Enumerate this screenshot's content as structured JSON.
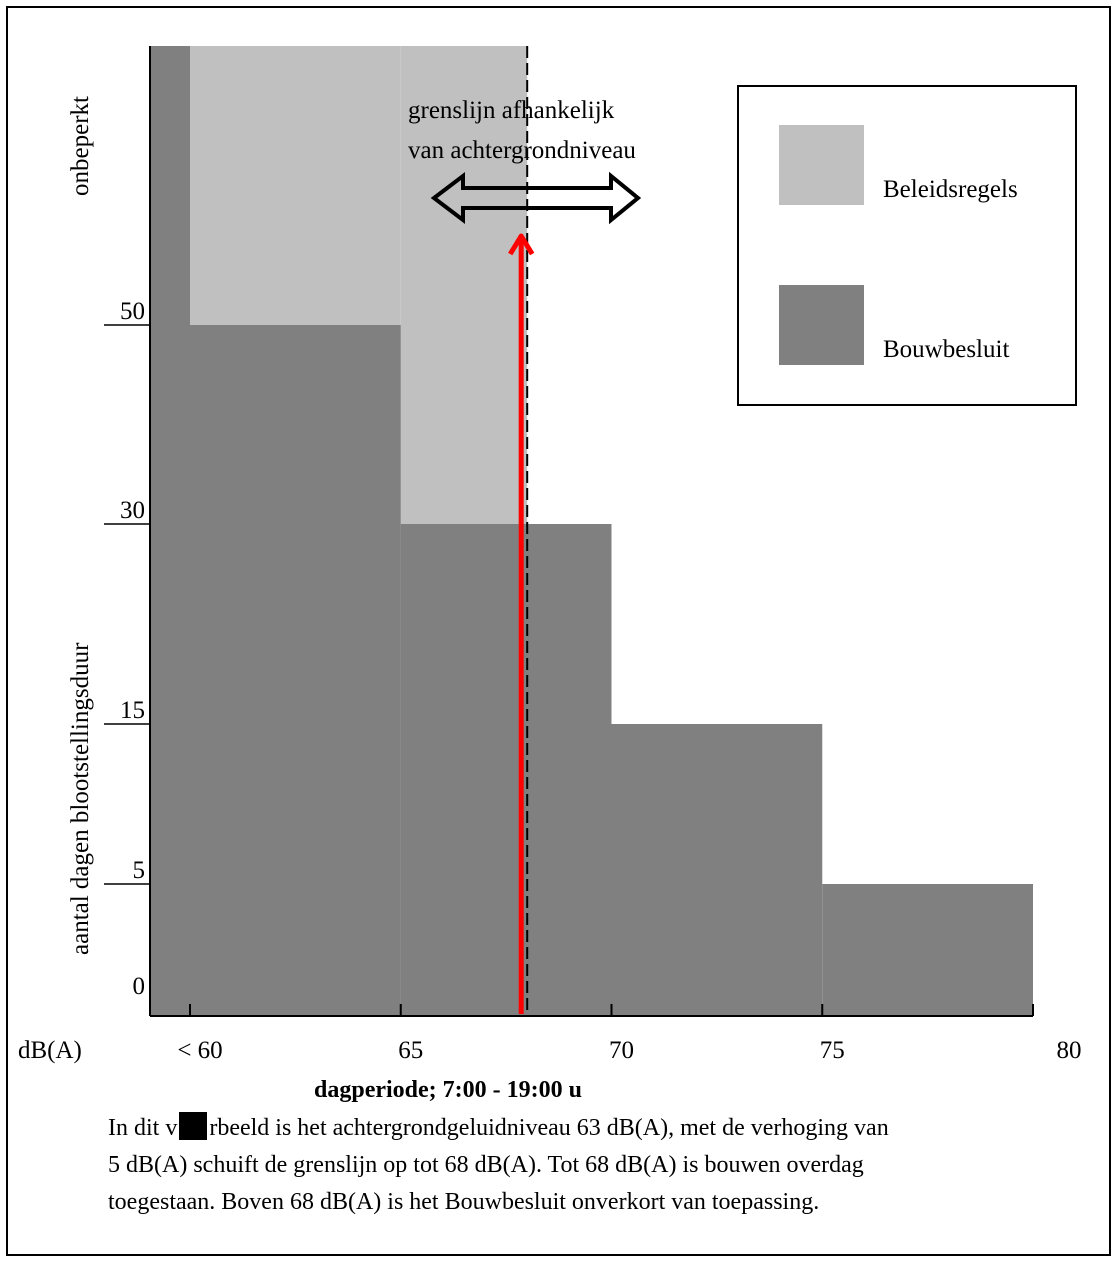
{
  "chart_data": {
    "type": "area",
    "title": "",
    "xlabel": "dagperiode; 7:00 - 19:00 u",
    "x_unit_label": "dB(A)",
    "ylabel": "aantal dagen blootstellingsduur",
    "x_ticks": [
      {
        "value": 60,
        "label": "< 60"
      },
      {
        "value": 65,
        "label": "65"
      },
      {
        "value": 70,
        "label": "70"
      },
      {
        "value": 75,
        "label": "75"
      },
      {
        "value": 80,
        "label": "80"
      }
    ],
    "y_ticks": [
      {
        "value": 0,
        "label": "0"
      },
      {
        "value": 5,
        "label": "5"
      },
      {
        "value": 15,
        "label": "15"
      },
      {
        "value": 30,
        "label": "30"
      },
      {
        "value": 50,
        "label": "50"
      }
    ],
    "y_top_label": "onbeperkt",
    "series": [
      {
        "name": "Bouwbesluit",
        "color": "#808080",
        "steps": [
          {
            "x_from": 59,
            "x_to": 60,
            "days": "onbeperkt"
          },
          {
            "x_from": 60,
            "x_to": 65,
            "days": 50
          },
          {
            "x_from": 65,
            "x_to": 70,
            "days": 30
          },
          {
            "x_from": 70,
            "x_to": 75,
            "days": 15
          },
          {
            "x_from": 75,
            "x_to": 80,
            "days": 5
          }
        ]
      },
      {
        "name": "Beleidsregels",
        "color": "#c0c0c0",
        "steps": [
          {
            "x_from": 60,
            "x_to": 65,
            "days": "onbeperkt"
          },
          {
            "x_from": 65,
            "x_to": 68,
            "days": "onbeperkt"
          }
        ]
      }
    ],
    "boundary_line_x": 68,
    "annotation": {
      "line1": "grenslijn afhankelijk",
      "line2": "van achtergrondniveau",
      "arrow_color": "#ff0000"
    },
    "legend": {
      "placement": "top-right",
      "entries": [
        {
          "label": "Beleidsregels",
          "color": "#c0c0c0"
        },
        {
          "label": "Bouwbesluit",
          "color": "#808080"
        }
      ]
    }
  },
  "caption": {
    "line1_before": "In dit v",
    "line1_after": "rbeeld is het achtergrondgeluidniveau 63 dB(A), met de verhoging van",
    "line2": "5 dB(A) schuift de grenslijn op tot 68 dB(A). Tot 68 dB(A) is bouwen overdag",
    "line3": "toegestaan. Boven 68 dB(A) is het Bouwbesluit onverkort van toepassing."
  }
}
